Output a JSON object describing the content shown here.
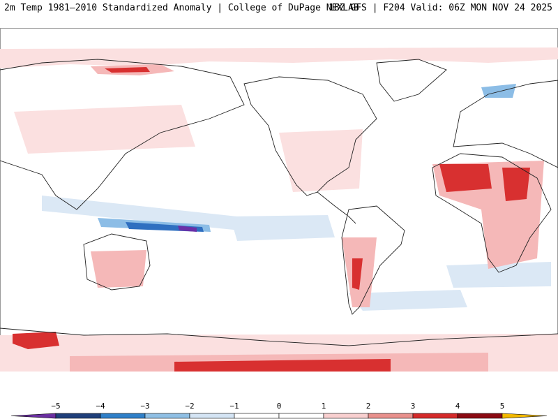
{
  "header": {
    "title_left": "2m Temp 1981–2010 Standardized Anomaly | College of DuPage NEXLAB",
    "title_right": "18Z GFS | F204 Valid: 06Z MON NOV 24 2025"
  },
  "colorbar": {
    "ticks": [
      "−5",
      "−4",
      "−3",
      "−2",
      "−1",
      "0",
      "1",
      "2",
      "3",
      "4",
      "5"
    ],
    "colors": [
      "#6a2fa0",
      "#1f3f7a",
      "#2f7fc8",
      "#8fbfe4",
      "#d4e4f4",
      "#ffffff",
      "#ffffff",
      "#f8cfcf",
      "#e8908c",
      "#d42a2a",
      "#8a0a12",
      "#f2b800"
    ]
  },
  "map": {
    "palette": {
      "land_outline": "#222222",
      "pink_light": "#fbe0e0",
      "pink": "#f5b8b8",
      "red": "#d83030",
      "dark_red": "#9a1018",
      "blue_light": "#dbe8f5",
      "blue": "#8cbde6",
      "blue_dark": "#2f6fc0",
      "purple": "#6a30a8"
    }
  }
}
